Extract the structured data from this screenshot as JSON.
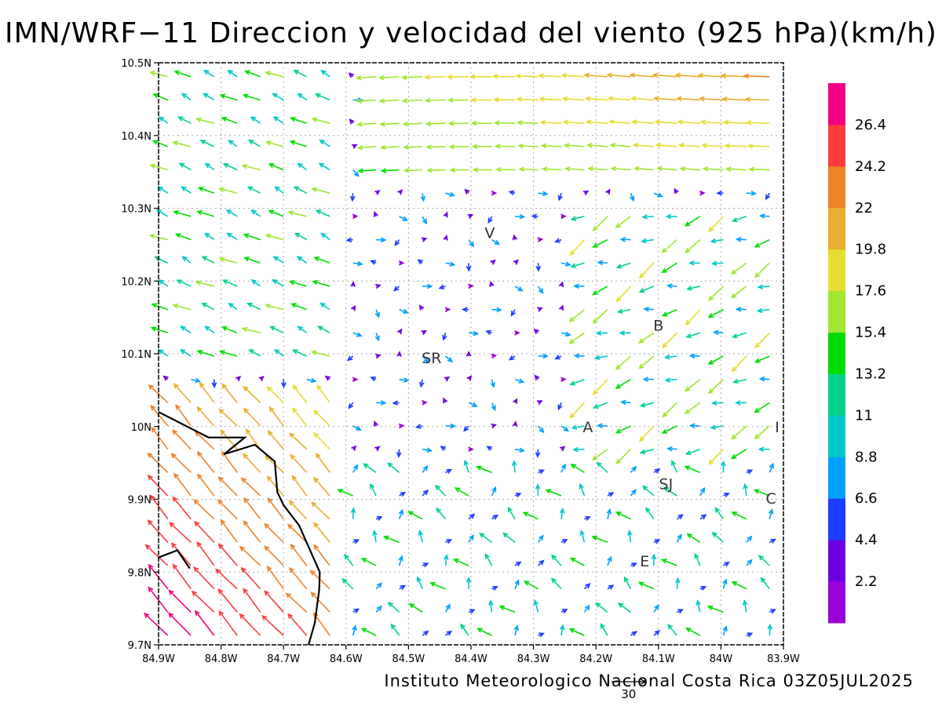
{
  "title": "IMN/WRF−11 Direccion y velocidad del viento (925 hPa)(km/h)",
  "footer": "Instituto Meteorologico Nacional Costa Rica 03Z05JUL2025",
  "map": {
    "projection": "lat-lon",
    "lon_range": [
      -84.9,
      -83.9
    ],
    "lat_range": [
      9.7,
      10.5
    ],
    "grid": "dotted",
    "lon_ticks": [
      {
        "value": -84.9,
        "label": "84.9W"
      },
      {
        "value": -84.8,
        "label": "84.8W"
      },
      {
        "value": -84.7,
        "label": "84.7W"
      },
      {
        "value": -84.6,
        "label": "84.6W"
      },
      {
        "value": -84.5,
        "label": "84.5W"
      },
      {
        "value": -84.4,
        "label": "84.4W"
      },
      {
        "value": -84.3,
        "label": "84.3W"
      },
      {
        "value": -84.2,
        "label": "84.2W"
      },
      {
        "value": -84.1,
        "label": "84.1W"
      },
      {
        "value": -84.0,
        "label": "84W"
      },
      {
        "value": -83.9,
        "label": "83.9W"
      }
    ],
    "lat_ticks": [
      {
        "value": 9.7,
        "label": "9.7N"
      },
      {
        "value": 9.8,
        "label": "9.8N"
      },
      {
        "value": 9.9,
        "label": "9.9N"
      },
      {
        "value": 10.0,
        "label": "10N"
      },
      {
        "value": 10.1,
        "label": "10.1N"
      },
      {
        "value": 10.2,
        "label": "10.2N"
      },
      {
        "value": 10.3,
        "label": "10.3N"
      },
      {
        "value": 10.4,
        "label": "10.4N"
      },
      {
        "value": 10.5,
        "label": "10.5N"
      }
    ],
    "places": [
      {
        "label": "V",
        "lon": -84.37,
        "lat": 10.265
      },
      {
        "label": "SR",
        "lon": -84.463,
        "lat": 10.093
      },
      {
        "label": "B",
        "lon": -84.1,
        "lat": 10.138
      },
      {
        "label": "A",
        "lon": -84.213,
        "lat": 9.998
      },
      {
        "label": "I",
        "lon": -83.91,
        "lat": 9.998
      },
      {
        "label": "SJ",
        "lon": -84.088,
        "lat": 9.92
      },
      {
        "label": "C",
        "lon": -83.92,
        "lat": 9.9
      },
      {
        "label": "E",
        "lon": -84.122,
        "lat": 9.814
      }
    ],
    "coastline": [
      [
        -84.9,
        10.02
      ],
      [
        -84.82,
        9.985
      ],
      [
        -84.762,
        9.985
      ],
      [
        -84.795,
        9.962
      ],
      [
        -84.746,
        9.975
      ],
      [
        -84.714,
        9.952
      ],
      [
        -84.71,
        9.91
      ],
      [
        -84.7,
        9.892
      ],
      [
        -84.675,
        9.864
      ],
      [
        -84.655,
        9.825
      ],
      [
        -84.642,
        9.8
      ],
      [
        -84.643,
        9.775
      ],
      [
        -84.65,
        9.73
      ],
      [
        -84.66,
        9.7
      ]
    ],
    "island": [
      [
        -84.9,
        9.82
      ],
      [
        -84.87,
        9.83
      ],
      [
        -84.85,
        9.805
      ]
    ]
  },
  "legend": {
    "colors": [
      "#9b00d6",
      "#6e00e0",
      "#1e3cff",
      "#00a0ff",
      "#00c8c8",
      "#00d28c",
      "#00dc00",
      "#a0e632",
      "#e6dc32",
      "#e6af2d",
      "#f08228",
      "#fa3c3c",
      "#f00082"
    ],
    "labels": [
      "2.2",
      "4.4",
      "6.6",
      "8.8",
      "11",
      "13.2",
      "15.4",
      "17.6",
      "19.8",
      "22",
      "24.2",
      "26.4"
    ]
  },
  "reference_vector": {
    "label": "30",
    "speed": 30
  },
  "wind_regions": [
    {
      "name": "northern-easterly-jet",
      "lon": [
        -84.45,
        -83.9
      ],
      "lat": [
        10.33,
        10.5
      ],
      "dir_deg": 270,
      "speed": [
        16,
        24
      ]
    },
    {
      "name": "northwest-flow",
      "lon": [
        -84.9,
        -84.65
      ],
      "lat": [
        10.1,
        10.48
      ],
      "dir_deg": 300,
      "speed": [
        9,
        16
      ]
    },
    {
      "name": "central-weak",
      "lon": [
        -84.62,
        -84.15
      ],
      "lat": [
        10.05,
        10.35
      ],
      "dir_deg": "variable",
      "speed": [
        2,
        8
      ]
    },
    {
      "name": "eastern-northeast",
      "lon": [
        -84.2,
        -83.9
      ],
      "lat": [
        9.92,
        10.3
      ],
      "dir_deg": 250,
      "speed": [
        8,
        20
      ]
    },
    {
      "name": "southern-mixed",
      "lon": [
        -84.6,
        -83.9
      ],
      "lat": [
        9.7,
        9.95
      ],
      "dir_deg": "variable",
      "speed": [
        4,
        14
      ]
    },
    {
      "name": "southwest-pacific-inflow",
      "lon": [
        -84.9,
        -84.6
      ],
      "lat": [
        9.7,
        10.05
      ],
      "dir_deg": 135,
      "speed": [
        12,
        28
      ]
    }
  ]
}
